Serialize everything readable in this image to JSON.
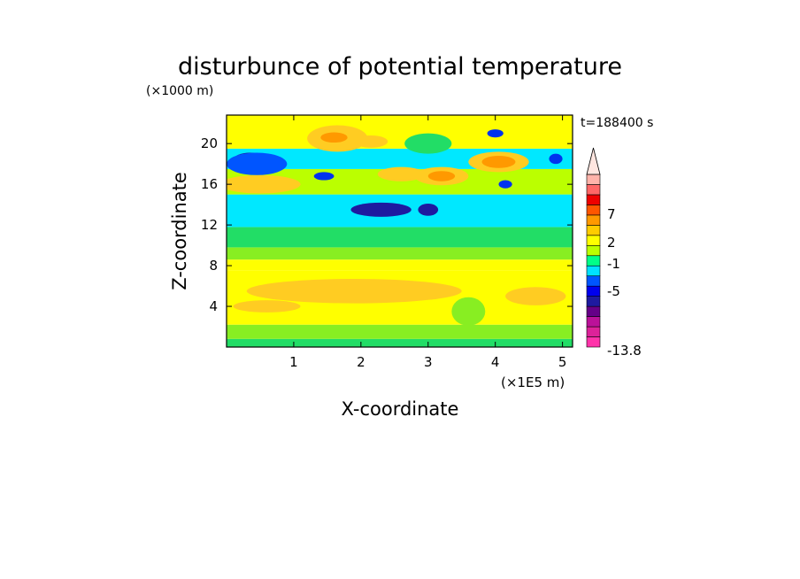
{
  "chart_data": {
    "type": "heatmap",
    "title": "disturbunce of potential temperature",
    "xlabel": "X-coordinate",
    "ylabel": "Z-coordinate",
    "x_unit": "(×1E5 m)",
    "y_unit": "(×1000 m)",
    "time_label": "t=188400 s",
    "xlim": [
      0,
      5.15
    ],
    "ylim": [
      0,
      22.8
    ],
    "x_ticks": [
      1,
      2,
      3,
      4,
      5
    ],
    "y_ticks": [
      4,
      8,
      12,
      16,
      20
    ],
    "colorbar": {
      "min_label": "-13.8",
      "tick_labels": [
        "7",
        "2",
        "-1",
        "-5",
        "-13.8"
      ],
      "colors": [
        "#ff33aa",
        "#dd2299",
        "#bb1199",
        "#660088",
        "#1e1aa0",
        "#0000ee",
        "#0055ff",
        "#00e0ff",
        "#00ff88",
        "#bbff00",
        "#ffff00",
        "#ffcc00",
        "#ff9900",
        "#ff5500",
        "#ee0000",
        "#ff6666",
        "#ffb3aa"
      ]
    },
    "bands": [
      {
        "z": [
          0,
          0.8
        ],
        "color": "#22dd66"
      },
      {
        "z": [
          0.8,
          2.2
        ],
        "color": "#88ee22"
      },
      {
        "z": [
          2.2,
          7.5
        ],
        "color": "#ffff00"
      },
      {
        "z": [
          7.5,
          8.6
        ],
        "color": "#ffff00"
      },
      {
        "z": [
          8.6,
          9.8
        ],
        "color": "#88ee22"
      },
      {
        "z": [
          9.8,
          11.8
        ],
        "color": "#22dd66"
      },
      {
        "z": [
          11.8,
          15.0
        ],
        "color": "#00e8ff"
      },
      {
        "z": [
          15.0,
          17.5
        ],
        "color": "#bbff00"
      },
      {
        "z": [
          17.5,
          19.5
        ],
        "color": "#00e8ff"
      },
      {
        "z": [
          19.5,
          22.8
        ],
        "color": "#ffff00"
      }
    ],
    "blobs": [
      {
        "x": 1.9,
        "z": 5.5,
        "rx": 1.6,
        "rz": 1.2,
        "color": "#ffcc22"
      },
      {
        "x": 0.6,
        "z": 4.0,
        "rx": 0.5,
        "rz": 0.6,
        "color": "#ffcc22"
      },
      {
        "x": 4.6,
        "z": 5.0,
        "rx": 0.45,
        "rz": 0.9,
        "color": "#ffcc22"
      },
      {
        "x": 3.6,
        "z": 3.5,
        "rx": 0.25,
        "rz": 1.4,
        "color": "#88ee22"
      },
      {
        "x": 1.65,
        "z": 20.5,
        "rx": 0.45,
        "rz": 1.3,
        "color": "#ffcc22"
      },
      {
        "x": 1.6,
        "z": 20.6,
        "rx": 0.2,
        "rz": 0.5,
        "color": "#ff9900"
      },
      {
        "x": 2.15,
        "z": 20.2,
        "rx": 0.25,
        "rz": 0.6,
        "color": "#ffcc22"
      },
      {
        "x": 0.5,
        "z": 16.0,
        "rx": 0.6,
        "rz": 0.9,
        "color": "#ffcc22"
      },
      {
        "x": 0.35,
        "z": 18.4,
        "rx": 0.25,
        "rz": 0.7,
        "color": "#1e1aa0"
      },
      {
        "x": 0.45,
        "z": 18.0,
        "rx": 0.45,
        "rz": 1.1,
        "color": "#0055ff"
      },
      {
        "x": 2.3,
        "z": 13.5,
        "rx": 0.45,
        "rz": 0.7,
        "color": "#1e1aa0"
      },
      {
        "x": 3.0,
        "z": 13.5,
        "rx": 0.15,
        "rz": 0.6,
        "color": "#1e1aa0"
      },
      {
        "x": 2.6,
        "z": 17.0,
        "rx": 0.35,
        "rz": 0.7,
        "color": "#ffcc22"
      },
      {
        "x": 3.2,
        "z": 16.8,
        "rx": 0.4,
        "rz": 0.9,
        "color": "#ffcc22"
      },
      {
        "x": 3.2,
        "z": 16.8,
        "rx": 0.2,
        "rz": 0.5,
        "color": "#ff9900"
      },
      {
        "x": 4.05,
        "z": 18.2,
        "rx": 0.45,
        "rz": 1.0,
        "color": "#ffcc22"
      },
      {
        "x": 4.05,
        "z": 18.2,
        "rx": 0.25,
        "rz": 0.6,
        "color": "#ff9900"
      },
      {
        "x": 3.0,
        "z": 20.0,
        "rx": 0.35,
        "rz": 1.0,
        "color": "#22dd66"
      },
      {
        "x": 4.0,
        "z": 21.0,
        "rx": 0.12,
        "rz": 0.4,
        "color": "#0033ee"
      },
      {
        "x": 4.15,
        "z": 16.0,
        "rx": 0.1,
        "rz": 0.4,
        "color": "#0033ee"
      },
      {
        "x": 4.9,
        "z": 18.5,
        "rx": 0.1,
        "rz": 0.5,
        "color": "#0033ee"
      },
      {
        "x": 1.45,
        "z": 16.8,
        "rx": 0.15,
        "rz": 0.4,
        "color": "#0033ee"
      }
    ]
  }
}
